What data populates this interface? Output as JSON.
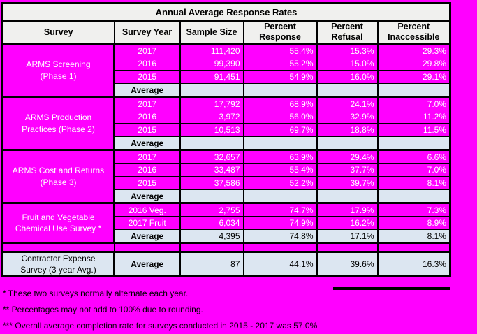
{
  "colors": {
    "background": "#ff00ff",
    "header_bg": "#f0f0ee",
    "average_row_bg": "#dce6f1",
    "grid": "#000000",
    "data_text": "#ffffff"
  },
  "chart_data": {
    "type": "table",
    "title": "Annual Average Response Rates",
    "columns": [
      "Survey",
      "Survey Year",
      "Sample Size",
      "Percent\nResponse",
      "Percent\nRefusal",
      "Percent\nInaccessible"
    ],
    "groups": [
      {
        "label": "ARMS Screening\n(Phase 1)",
        "rows": [
          {
            "year": "2017",
            "sample": "111,420",
            "response": "55.4%",
            "refusal": "15.3%",
            "inaccessible": "29.3%"
          },
          {
            "year": "2016",
            "sample": "99,390",
            "response": "55.2%",
            "refusal": "15.0%",
            "inaccessible": "29.8%"
          },
          {
            "year": "2015",
            "sample": "91,451",
            "response": "54.9%",
            "refusal": "16.0%",
            "inaccessible": "29.1%"
          },
          {
            "year": "Average",
            "sample": "",
            "response": "",
            "refusal": "",
            "inaccessible": ""
          }
        ]
      },
      {
        "label": "ARMS Production\nPractices (Phase 2)",
        "rows": [
          {
            "year": "2017",
            "sample": "17,792",
            "response": "68.9%",
            "refusal": "24.1%",
            "inaccessible": "7.0%"
          },
          {
            "year": "2016",
            "sample": "3,972",
            "response": "56.0%",
            "refusal": "32.9%",
            "inaccessible": "11.2%"
          },
          {
            "year": "2015",
            "sample": "10,513",
            "response": "69.7%",
            "refusal": "18.8%",
            "inaccessible": "11.5%"
          },
          {
            "year": "Average",
            "sample": "",
            "response": "",
            "refusal": "",
            "inaccessible": ""
          }
        ]
      },
      {
        "label": "ARMS Cost and Returns\n(Phase 3)",
        "rows": [
          {
            "year": "2017",
            "sample": "32,657",
            "response": "63.9%",
            "refusal": "29.4%",
            "inaccessible": "6.6%"
          },
          {
            "year": "2016",
            "sample": "33,487",
            "response": "55.4%",
            "refusal": "37.7%",
            "inaccessible": "7.0%"
          },
          {
            "year": "2015",
            "sample": "37,586",
            "response": "52.2%",
            "refusal": "39.7%",
            "inaccessible": "8.1%"
          },
          {
            "year": "Average",
            "sample": "",
            "response": "",
            "refusal": "",
            "inaccessible": ""
          }
        ]
      },
      {
        "label": "Fruit and Vegetable\nChemical Use Survey *",
        "rows": [
          {
            "year": "2016 Veg.",
            "sample": "2,755",
            "response": "74.7%",
            "refusal": "17.9%",
            "inaccessible": "7.3%"
          },
          {
            "year": "2017 Fruit",
            "sample": "6,034",
            "response": "74.9%",
            "refusal": "16.2%",
            "inaccessible": "8.9%"
          },
          {
            "year": "Average",
            "sample": "4,395",
            "response": "74.8%",
            "refusal": "17.1%",
            "inaccessible": "8.1%"
          }
        ]
      },
      {
        "label": "Contractor Expense\nSurvey (3 year Avg.)",
        "rows": [
          {
            "year": "Average",
            "sample": "87",
            "response": "44.1%",
            "refusal": "39.6%",
            "inaccessible": "16.3%"
          }
        ]
      }
    ],
    "footnotes": [
      "* These two surveys normally alternate each year.",
      "** Percentages may not add to 100% due to rounding.",
      "*** Overall average completion rate for surveys conducted in 2015 - 2017 was 57.0%"
    ]
  }
}
